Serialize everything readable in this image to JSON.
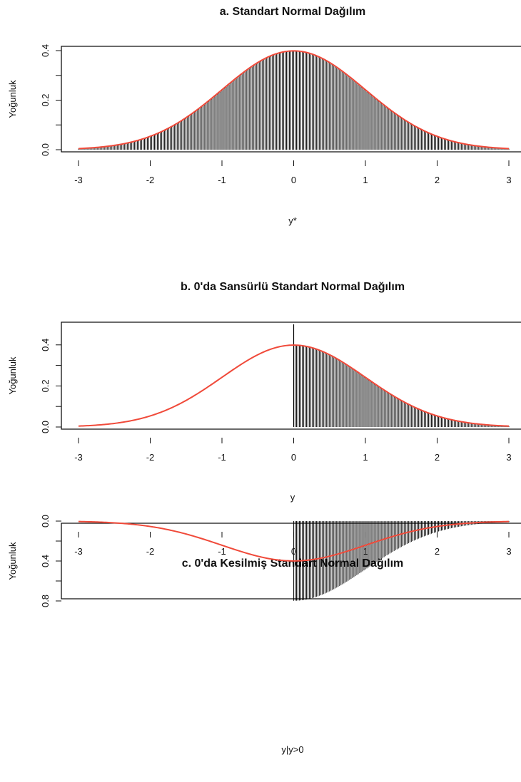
{
  "chart_data": [
    {
      "type": "line",
      "id": "a",
      "title": "a. Standart Normal Dağılım",
      "xlabel": "y*",
      "ylabel": "Yoğunluk",
      "xlim": [
        -3,
        3
      ],
      "ylim": [
        0,
        0.4
      ],
      "xticks": [
        "-3",
        "-2",
        "-1",
        "0",
        "1",
        "2",
        "3"
      ],
      "yticks": [
        "0.0",
        "0.2",
        "0.4"
      ],
      "series": [
        {
          "kind": "curve",
          "function": "standard-normal-density",
          "color": "#f04a3a"
        },
        {
          "kind": "spikes",
          "function": "standard-normal-density",
          "x_from": -3,
          "x_to": 3,
          "color": "#000000"
        }
      ]
    },
    {
      "type": "line",
      "id": "b",
      "title": "b. 0'da Sansürlü Standart Normal Dağılım",
      "xlabel": "y",
      "ylabel": "Yoğunluk",
      "xlim": [
        -3,
        3
      ],
      "ylim": [
        0,
        0.5
      ],
      "xticks": [
        "-3",
        "-2",
        "-1",
        "0",
        "1",
        "2",
        "3"
      ],
      "yticks": [
        "0.0",
        "0.2",
        "0.4"
      ],
      "series": [
        {
          "kind": "curve",
          "function": "standard-normal-density",
          "color": "#f04a3a"
        },
        {
          "kind": "spikes",
          "function": "standard-normal-density",
          "x_from": 0,
          "x_to": 3,
          "color": "#000000"
        },
        {
          "kind": "mass-at-zero",
          "x": 0,
          "y": 0.5,
          "color": "#000000"
        }
      ]
    },
    {
      "type": "line",
      "id": "c",
      "title": "c. 0'da Kesilmiş Standart Normal Dağılım",
      "xlabel": "y|y>0",
      "ylabel": "Yoğunluk",
      "xlim": [
        -3,
        3
      ],
      "ylim": [
        0,
        0.8
      ],
      "xticks": [
        "-3",
        "-2",
        "-1",
        "0",
        "1",
        "2",
        "3"
      ],
      "yticks": [
        "0.0",
        "0.4",
        "0.8"
      ],
      "series": [
        {
          "kind": "curve",
          "function": "standard-normal-density",
          "color": "#f04a3a"
        },
        {
          "kind": "spikes",
          "function": "truncated-normal-density-at-0",
          "x_from": 0,
          "x_to": 3,
          "color": "#000000"
        }
      ]
    }
  ]
}
